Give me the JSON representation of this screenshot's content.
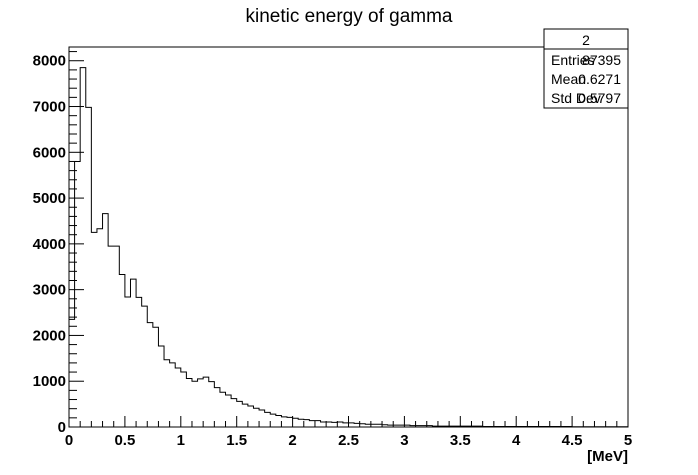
{
  "chart_data": {
    "type": "bar",
    "title": "kinetic energy of gamma",
    "xlabel": "[MeV]",
    "ylabel": "",
    "xlim": [
      0,
      5
    ],
    "ylim": [
      0,
      8300
    ],
    "x_ticks": [
      "0",
      "0.5",
      "1",
      "1.5",
      "2",
      "2.5",
      "3",
      "3.5",
      "4",
      "4.5",
      "5"
    ],
    "y_ticks": [
      "0",
      "1000",
      "2000",
      "3000",
      "4000",
      "5000",
      "6000",
      "7000",
      "8000"
    ],
    "bin_width": 0.05,
    "values": [
      2350,
      5800,
      7850,
      6980,
      4250,
      4330,
      4660,
      3950,
      3950,
      3330,
      2840,
      3230,
      2830,
      2640,
      2280,
      2180,
      1770,
      1470,
      1400,
      1290,
      1200,
      1060,
      1000,
      1050,
      1090,
      990,
      860,
      760,
      700,
      620,
      560,
      500,
      460,
      410,
      370,
      320,
      280,
      250,
      220,
      210,
      190,
      170,
      160,
      140,
      140,
      110,
      110,
      100,
      110,
      90,
      90,
      80,
      70,
      60,
      60,
      60,
      50,
      40,
      40,
      40,
      40,
      30,
      30,
      30,
      30,
      20,
      20,
      20,
      20,
      20,
      20,
      20,
      20,
      20,
      10,
      10,
      10,
      10,
      10,
      10,
      10,
      10,
      10,
      10,
      10,
      10,
      10,
      10,
      10,
      10,
      5,
      5,
      5,
      5,
      5,
      5,
      5,
      5,
      5,
      5
    ],
    "grid": false,
    "legend": "none"
  },
  "stats_box": {
    "name": "2",
    "rows": [
      {
        "label": "Entries",
        "value": "87395"
      },
      {
        "label": "Mean",
        "value": "0.6271"
      },
      {
        "label": "Std Dev",
        "value": "0.5797"
      }
    ]
  }
}
